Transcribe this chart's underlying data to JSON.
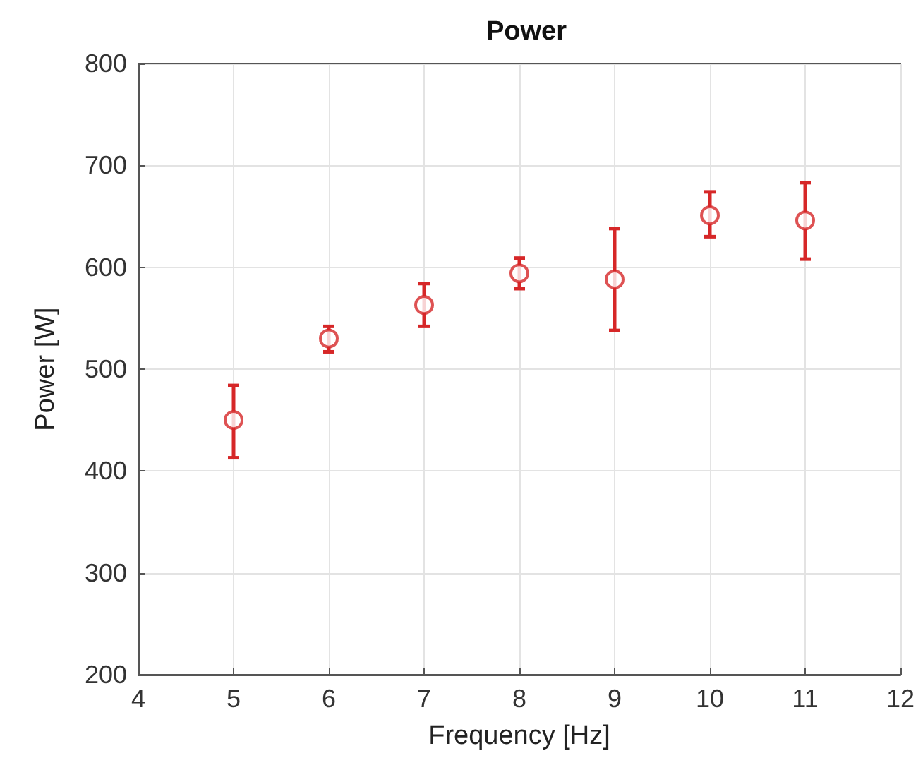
{
  "chart_data": {
    "type": "scatter",
    "title": "Power",
    "xlabel": "Frequency [Hz]",
    "ylabel": "Power [W]",
    "x": [
      5,
      6,
      7,
      8,
      9,
      10,
      11
    ],
    "series": [
      {
        "color": "#d62728",
        "values": [
          450,
          530,
          563,
          594,
          588,
          651,
          646
        ],
        "errors": [
          [
            413,
            484
          ],
          [
            517,
            542
          ],
          [
            542,
            584
          ],
          [
            579,
            609
          ],
          [
            538,
            638
          ],
          [
            630,
            674
          ],
          [
            608,
            683
          ]
        ]
      }
    ],
    "xlim": [
      4,
      12
    ],
    "xticks": [
      4,
      5,
      6,
      7,
      8,
      9,
      10,
      11,
      12
    ],
    "ylim": [
      200,
      800
    ],
    "yticks": [
      200,
      300,
      400,
      500,
      600,
      700,
      800
    ],
    "grid": true,
    "marker": "circle"
  }
}
